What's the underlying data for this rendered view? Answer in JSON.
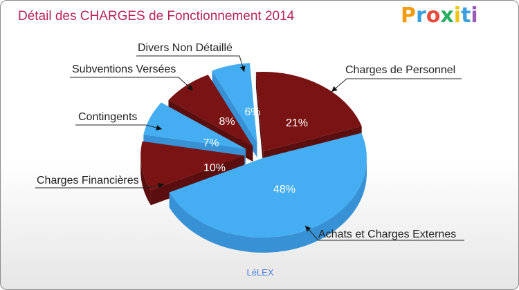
{
  "chart_data": {
    "type": "pie",
    "title": "Détail des CHARGES de Fonctionnement 2014",
    "subtitle": "LéLEX",
    "categories": [
      "Charges de Personnel",
      "Achats et Charges Externes",
      "Charges Financières",
      "Contingents",
      "Subventions Versées",
      "Divers Non Détaillé"
    ],
    "values": [
      21,
      48,
      10,
      7,
      8,
      6
    ],
    "value_labels": [
      "21%",
      "48%",
      "10%",
      "7%",
      "8%",
      "6%"
    ],
    "colors": [
      "#7a1414",
      "#45aef3",
      "#7a1414",
      "#45aef3",
      "#7a1414",
      "#45aef3"
    ],
    "side_colors": [
      "#5a0e0e",
      "#3891d4",
      "#5a0e0e",
      "#3891d4",
      "#5a0e0e",
      "#3891d4"
    ],
    "legend": "callout labels around the pie"
  },
  "logo": {
    "text": "Proxiti",
    "colors": [
      "#f39c12",
      "#3aa0e0",
      "#e74c3c",
      "#27ae60",
      "#f1c40f",
      "#3aa0e0",
      "#9b59b6"
    ]
  }
}
